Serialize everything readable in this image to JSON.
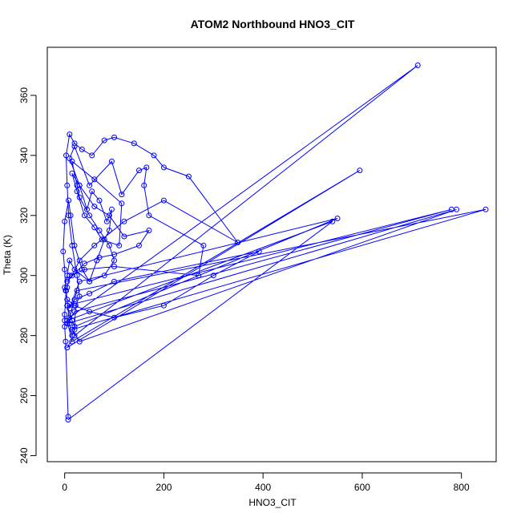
{
  "chart_data": {
    "type": "line",
    "title": "ATOM2 Northbound HNO3_CIT",
    "xlabel": "HNO3_CIT",
    "ylabel": "Theta (K)",
    "xlim": [
      -35,
      870
    ],
    "ylim": [
      238,
      376
    ],
    "xticks": [
      0,
      200,
      400,
      600,
      800
    ],
    "yticks": [
      240,
      260,
      280,
      300,
      320,
      340,
      360
    ],
    "grid": false,
    "markers": "open-circle",
    "colors": {
      "series": "#0000ff",
      "axes": "#000000"
    },
    "series": [
      {
        "x": [
          7,
          2,
          0,
          0,
          0,
          3,
          6,
          10,
          15,
          20,
          22,
          30,
          25,
          15,
          8,
          5,
          3,
          10,
          20,
          35,
          55,
          80,
          100,
          140,
          180,
          200,
          250,
          349,
          200,
          120,
          60,
          30,
          15,
          5,
          40,
          70,
          100,
          150,
          170,
          120,
          90,
          60,
          30,
          10,
          20,
          50,
          95,
          115,
          150,
          165,
          160,
          170,
          280,
          270,
          100,
          40,
          10,
          5,
          2,
          0,
          -3,
          0,
          8,
          12,
          20,
          35,
          50,
          65,
          80,
          90,
          95,
          85,
          70,
          55,
          45,
          30,
          15,
          25,
          40,
          60,
          75,
          110,
          115,
          60,
          15,
          25,
          30,
          50,
          70,
          90,
          100,
          80,
          50,
          20,
          10,
          5,
          0,
          5,
          20,
          50,
          100,
          200,
          300,
          392,
          100,
          50,
          20,
          10,
          30,
          550,
          20,
          15,
          5,
          780,
          20,
          5,
          790,
          30,
          15,
          849,
          25,
          10,
          712,
          20,
          5,
          595,
          15,
          5,
          540,
          7
        ],
        "y": [
          253,
          278,
          283,
          285,
          287,
          295,
          290,
          284,
          280,
          282,
          290,
          293,
          300,
          310,
          320,
          330,
          340,
          347,
          344,
          342,
          340,
          345,
          346,
          344,
          340,
          336,
          333,
          311,
          325,
          318,
          310,
          305,
          300,
          298,
          304,
          306,
          307,
          310,
          315,
          313,
          320,
          323,
          330,
          339,
          343,
          330,
          338,
          327,
          335,
          336,
          330,
          320,
          310,
          300,
          303,
          302,
          300,
          296,
          295,
          302,
          308,
          318,
          325,
          320,
          310,
          302,
          298,
          305,
          312,
          315,
          322,
          318,
          325,
          328,
          322,
          330,
          334,
          328,
          320,
          316,
          312,
          310,
          324,
          332,
          338,
          330,
          326,
          320,
          315,
          310,
          305,
          300,
          298,
          302,
          305,
          300,
          296,
          292,
          290,
          288,
          286,
          290,
          300,
          308,
          298,
          294,
          292,
          289,
          298,
          319,
          283,
          285,
          290,
          322,
          288,
          284,
          322,
          278,
          282,
          322,
          295,
          286,
          370,
          280,
          276,
          335,
          278,
          285,
          318,
          252
        ]
      }
    ]
  }
}
